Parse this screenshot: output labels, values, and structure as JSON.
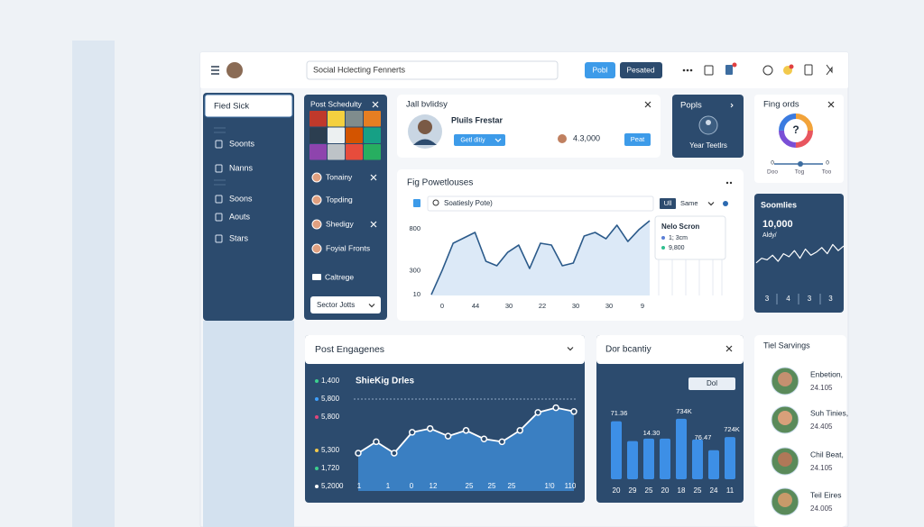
{
  "header": {
    "search": "Social Hclecting Fennerts",
    "buttons": [
      "Pobl",
      "Pesated"
    ]
  },
  "sidebar": {
    "title": "Fied Sick",
    "items": [
      "Soonts",
      "Nanns",
      "Soons",
      "Aouts",
      "Stars"
    ]
  },
  "schedule": {
    "title": "Post Schedulty",
    "items": [
      "Tonainy",
      "Topding",
      "Shedigy",
      "Foyial Fronts",
      "Caltrege"
    ],
    "button": "Sector Jotts"
  },
  "profile": {
    "title": "Jall bvlidsy",
    "name": "Pluils Frestar",
    "button": "Getl ditiy",
    "count": "4.3,000",
    "action": "Peat"
  },
  "popls": {
    "title": "Popls",
    "caption": "Year Teetlrs"
  },
  "rings": {
    "title": "Fing ords",
    "icon": "?",
    "slider_values": [
      "0",
      "0"
    ],
    "slider_labels": [
      "Doo",
      "Tog",
      "Too"
    ]
  },
  "main_chart": {
    "type": "line",
    "title": "Fig Powetlouses",
    "search": "Soatiesly Pote)",
    "filter": "Ull",
    "select": "Same",
    "ylim": [
      0,
      900
    ],
    "yticks": [
      800,
      300,
      10
    ],
    "x_labels": [
      "0",
      "44",
      "30",
      "22",
      "30",
      "30",
      "9"
    ],
    "values": [
      10,
      304,
      629,
      694,
      759,
      412,
      358,
      520,
      607,
      325,
      629,
      607,
      358,
      390,
      716,
      759,
      683,
      846,
      650,
      791,
      900
    ],
    "color": "#2b5a8a",
    "fill": "#dce9f7",
    "tooltip": {
      "title": "Nelo Scron",
      "rows": [
        "1; 3cm",
        "9,800"
      ]
    }
  },
  "sparkline": {
    "type": "line",
    "title": "Soomlies",
    "value": "10,000",
    "caption": "Aldy/",
    "ylim": [
      0,
      100
    ],
    "values": [
      30,
      45,
      40,
      55,
      35,
      60,
      50,
      70,
      45,
      75,
      55,
      65,
      80,
      60,
      90,
      70,
      85
    ],
    "color": "#ffffff",
    "x_labels": [
      "3",
      "4",
      "3",
      "3"
    ]
  },
  "engagement": {
    "type": "area",
    "title": "Post Engagenes",
    "chart_title": "ShieKig Drles",
    "ylim": [
      0,
      100
    ],
    "values": [
      40,
      52,
      40,
      62,
      66,
      58,
      64,
      55,
      52,
      64,
      83,
      88,
      84
    ],
    "color": "#ffffff",
    "fill": "#3a7fc2",
    "y_labels": [
      {
        "text": "1,400",
        "color": "#3ccf8e"
      },
      {
        "text": "5,800",
        "color": "#3fa0ff"
      },
      {
        "text": "5,800",
        "color": "#e0457b"
      },
      {
        "text": "5,300",
        "color": "#f2c94c"
      },
      {
        "text": "1,720",
        "color": "#3ccf8e"
      },
      {
        "text": "5,2000",
        "color": "#ffffff"
      }
    ],
    "x_labels": [
      "1",
      "1",
      "0",
      "12",
      "25",
      "25",
      "25",
      "1!0",
      "110"
    ]
  },
  "density": {
    "type": "bar",
    "title": "Dor bcantiy",
    "button": "Dol",
    "ylim": [
      0,
      100
    ],
    "values": [
      70,
      46,
      49,
      49,
      73,
      48,
      35,
      51
    ],
    "color": "#3d8fe6",
    "annotations": [
      "71.36",
      "14.30",
      "734K",
      "76.47",
      "724K"
    ],
    "x_labels": [
      "20",
      "29",
      "25",
      "20",
      "18",
      "25",
      "24",
      "11"
    ]
  },
  "servings": {
    "title": "Tiel Sarvings",
    "items": [
      {
        "name": "Enbetion,",
        "value": "24.105"
      },
      {
        "name": "Suh Tinies,",
        "value": "24.405"
      },
      {
        "name": "Chil Beat,",
        "value": "24.105"
      },
      {
        "name": "Teil Eires",
        "value": "24.005"
      }
    ]
  }
}
